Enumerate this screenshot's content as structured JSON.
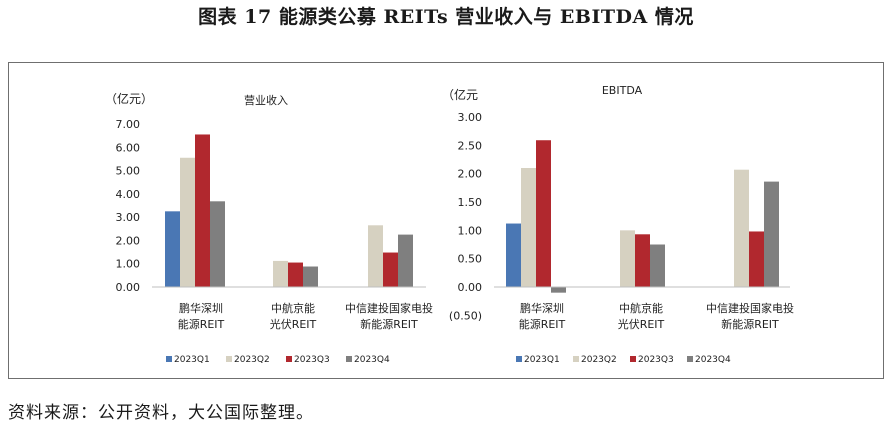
{
  "figure_title": "图表 17 能源类公募 REITs 营业收入与 EBITDA 情况",
  "source_note": "资料来源：公开资料，大公国际整理。",
  "colors": {
    "2023Q1": "#4a77b4",
    "2023Q2": "#d6d1c1",
    "2023Q3": "#b1282e",
    "2023Q4": "#7f7f7f"
  },
  "chart_data": [
    {
      "type": "bar",
      "title": "营业收入",
      "ylabel": "（亿元）",
      "ylim": [
        0,
        7
      ],
      "yticks": [
        "7.00",
        "6.00",
        "5.00",
        "4.00",
        "3.00",
        "2.00",
        "1.00",
        "0.00"
      ],
      "categories": [
        [
          "鹏华深圳",
          "能源REIT"
        ],
        [
          "中航京能",
          "光伏REIT"
        ],
        [
          "中信建投国家电投",
          "新能源REIT"
        ]
      ],
      "series": [
        {
          "name": "2023Q1",
          "values": [
            3.25,
            0,
            0
          ]
        },
        {
          "name": "2023Q2",
          "values": [
            5.55,
            1.12,
            2.65
          ]
        },
        {
          "name": "2023Q3",
          "values": [
            6.55,
            1.05,
            1.48
          ]
        },
        {
          "name": "2023Q4",
          "values": [
            3.68,
            0.88,
            2.25
          ]
        }
      ],
      "legend": [
        "2023Q1",
        "2023Q2",
        "2023Q3",
        "2023Q4"
      ],
      "legend_position": "bottom",
      "grid": false
    },
    {
      "type": "bar",
      "title": "EBITDA",
      "ylabel": "（亿元",
      "ylim": [
        -0.5,
        3
      ],
      "yticks": [
        "3.00",
        "2.50",
        "2.00",
        "1.50",
        "1.00",
        "0.50",
        "0.00",
        "(0.50)"
      ],
      "categories": [
        [
          "鹏华深圳",
          "能源REIT"
        ],
        [
          "中航京能",
          "光伏REIT"
        ],
        [
          "中信建投国家电投",
          "新能源REIT"
        ]
      ],
      "series": [
        {
          "name": "2023Q1",
          "values": [
            1.12,
            0,
            0
          ]
        },
        {
          "name": "2023Q2",
          "values": [
            2.1,
            1.0,
            2.07
          ]
        },
        {
          "name": "2023Q3",
          "values": [
            2.59,
            0.93,
            0.98
          ]
        },
        {
          "name": "2023Q4",
          "values": [
            -0.1,
            0.75,
            1.86
          ]
        }
      ],
      "legend": [
        "2023Q1",
        "2023Q2",
        "2023Q3",
        "2023Q4"
      ],
      "legend_position": "bottom",
      "grid": false
    }
  ]
}
